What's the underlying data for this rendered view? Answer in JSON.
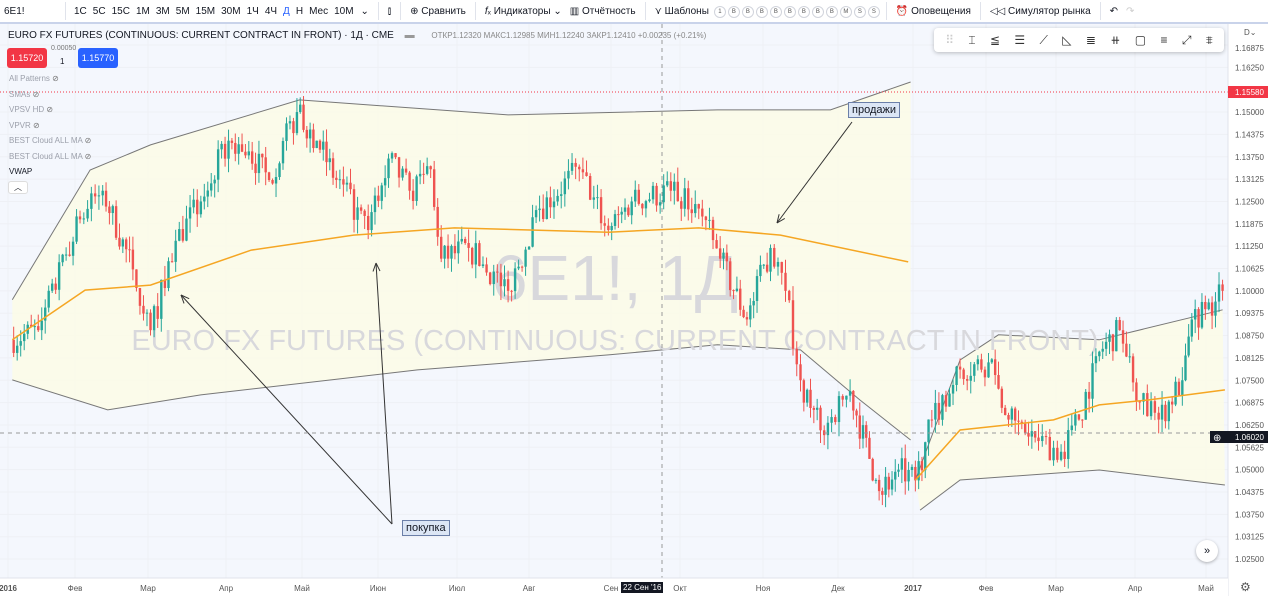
{
  "toolbar": {
    "symbol": "6E1!",
    "intervals": [
      "1С",
      "5С",
      "15С",
      "1М",
      "3М",
      "5М",
      "15М",
      "30М",
      "1Ч",
      "4Ч",
      "Д",
      "Н",
      "Мес",
      "10М"
    ],
    "active_interval": "Д",
    "compare": "Сравнить",
    "indicators": "Индикаторы",
    "reports": "Отчётность",
    "templates": "Шаблоны",
    "circles": [
      "1",
      "B",
      "B",
      "B",
      "B",
      "B",
      "B",
      "B",
      "B",
      "M",
      "S",
      "S"
    ],
    "alerts": "Оповещения",
    "replay": "Симулятор рынка"
  },
  "legend": {
    "title": "EURO FX FUTURES (CONTINUOUS: CURRENT CONTRACT IN FRONT) · 1Д · CME",
    "ohlc": "ОТКР1.12320 МАКС1.12985 МИН1.12240 ЗАКР1.12410 +0.00235 (+0.21%)",
    "sell_price": "1.15720",
    "spread": "0.00050",
    "qty": "1",
    "buy_price": "1.15770"
  },
  "indicators": [
    "All Patterns",
    "SMAs",
    "VPSV HD",
    "VPVR",
    "BEST Cloud ALL MA",
    "BEST Cloud ALL MA",
    "VWAP"
  ],
  "watermark": {
    "symbol": "6E1!, 1Д",
    "name": "EURO FX FUTURES (CONTINUOUS: CURRENT CONTRACT IN FRONT)"
  },
  "annotations": {
    "buy": "покупка",
    "sell": "продажи"
  },
  "price_axis": {
    "top_partial": "D",
    "ticks": [
      "1.16875",
      "1.16250",
      "1.15000",
      "1.14375",
      "1.13750",
      "1.13125",
      "1.12500",
      "1.11875",
      "1.11250",
      "1.10625",
      "1.10000",
      "1.09375",
      "1.08750",
      "1.08125",
      "1.07500",
      "1.06875",
      "1.06250",
      "1.05625",
      "1.05000",
      "1.04375",
      "1.03750",
      "1.03125",
      "1.02500"
    ],
    "last_price": "1.15580",
    "crosshair_price": "1.06020"
  },
  "time_axis": {
    "ticks": [
      [
        "2016-01-01",
        "2016"
      ],
      [
        "2016-02-01",
        "Фев"
      ],
      [
        "2016-03-01",
        "Мар"
      ],
      [
        "2016-04-01",
        "Апр"
      ],
      [
        "2016-05-01",
        "Май"
      ],
      [
        "2016-06-01",
        "Июн"
      ],
      [
        "2016-07-01",
        "Июл"
      ],
      [
        "2016-08-01",
        "Авг"
      ],
      [
        "2016-09-01",
        "Сен"
      ],
      [
        "2016-10-01",
        "Окт"
      ],
      [
        "2016-11-01",
        "Ноя"
      ],
      [
        "2016-12-01",
        "Дек"
      ],
      [
        "2017-01-01",
        "2017"
      ],
      [
        "2017-02-01",
        "Фев"
      ],
      [
        "2017-03-01",
        "Мар"
      ],
      [
        "2017-04-01",
        "Апр"
      ],
      [
        "2017-05-01",
        "Май"
      ]
    ],
    "crosshair_date": "22 Сен '16"
  },
  "colors": {
    "up": "#26a69a",
    "down": "#ef5350",
    "vwap": "#f5a623",
    "channel": "#777777",
    "fill": "#fbfbe6",
    "accent": "#2962ff"
  },
  "chart_data": {
    "type": "candlestick",
    "ylim": [
      1.02,
      1.17
    ],
    "close": [
      [
        "2016-01-02",
        1.0863
      ],
      [
        "2016-01-15",
        1.089
      ],
      [
        "2016-02-03",
        1.12
      ],
      [
        "2016-02-12",
        1.128
      ],
      [
        "2016-02-24",
        1.106
      ],
      [
        "2016-03-02",
        1.089
      ],
      [
        "2016-03-12",
        1.114
      ],
      [
        "2016-03-22",
        1.125
      ],
      [
        "2016-04-02",
        1.142
      ],
      [
        "2016-04-10",
        1.139
      ],
      [
        "2016-04-18",
        1.131
      ],
      [
        "2016-04-29",
        1.15
      ],
      [
        "2016-05-07",
        1.142
      ],
      [
        "2016-05-15",
        1.131
      ],
      [
        "2016-05-28",
        1.117
      ],
      [
        "2016-06-05",
        1.137
      ],
      [
        "2016-06-13",
        1.128
      ],
      [
        "2016-06-21",
        1.134
      ],
      [
        "2016-06-25",
        1.109
      ],
      [
        "2016-07-06",
        1.112
      ],
      [
        "2016-07-23",
        1.1
      ],
      [
        "2016-08-05",
        1.123
      ],
      [
        "2016-08-20",
        1.134
      ],
      [
        "2016-08-31",
        1.117
      ],
      [
        "2016-09-10",
        1.125
      ],
      [
        "2016-09-27",
        1.128
      ],
      [
        "2016-10-08",
        1.123
      ],
      [
        "2016-10-16",
        1.109
      ],
      [
        "2016-10-26",
        1.092
      ],
      [
        "2016-11-04",
        1.112
      ],
      [
        "2016-11-10",
        1.1
      ],
      [
        "2016-11-16",
        1.075
      ],
      [
        "2016-11-24",
        1.061
      ],
      [
        "2016-12-06",
        1.072
      ],
      [
        "2016-12-14",
        1.053
      ],
      [
        "2016-12-18",
        1.044
      ],
      [
        "2016-12-26",
        1.05
      ],
      [
        "2017-01-02",
        1.047
      ],
      [
        "2017-01-09",
        1.064
      ],
      [
        "2017-01-21",
        1.078
      ],
      [
        "2017-02-02",
        1.08
      ],
      [
        "2017-02-10",
        1.064
      ],
      [
        "2017-02-22",
        1.058
      ],
      [
        "2017-03-03",
        1.055
      ],
      [
        "2017-03-10",
        1.064
      ],
      [
        "2017-03-18",
        1.083
      ],
      [
        "2017-03-26",
        1.089
      ],
      [
        "2017-04-03",
        1.069
      ],
      [
        "2017-04-11",
        1.064
      ],
      [
        "2017-04-21",
        1.075
      ],
      [
        "2017-04-25",
        1.092
      ],
      [
        "2017-05-05",
        1.097
      ],
      [
        "2017-05-08",
        1.1
      ]
    ],
    "channel_1_upper": [
      [
        "2016-01-03",
        1.0975
      ],
      [
        "2016-02-07",
        1.1338
      ],
      [
        "2016-03-02",
        1.1408
      ],
      [
        "2016-04-30",
        1.1534
      ],
      [
        "2016-07-23",
        1.1492
      ],
      [
        "2016-10-15",
        1.1506
      ],
      [
        "2016-11-28",
        1.1506
      ],
      [
        "2016-12-31",
        1.1584
      ]
    ],
    "channel_1_lower": [
      [
        "2016-01-03",
        1.0751
      ],
      [
        "2016-02-14",
        1.0667
      ],
      [
        "2016-03-22",
        1.0709
      ],
      [
        "2016-06-16",
        1.0779
      ],
      [
        "2016-08-31",
        1.0821
      ],
      [
        "2016-10-15",
        1.0849
      ],
      [
        "2016-11-16",
        1.0835
      ],
      [
        "2016-12-10",
        1.0695
      ],
      [
        "2016-12-31",
        1.0583
      ]
    ],
    "channel_2_upper": [
      [
        "2017-01-02",
        1.0471
      ],
      [
        "2017-01-21",
        1.0807
      ],
      [
        "2017-02-06",
        1.0877
      ],
      [
        "2017-03-18",
        1.0863
      ],
      [
        "2017-05-08",
        1.0947
      ]
    ],
    "channel_2_lower": [
      [
        "2017-01-04",
        1.0387
      ],
      [
        "2017-01-21",
        1.0471
      ],
      [
        "2017-03-18",
        1.0499
      ],
      [
        "2017-05-09",
        1.0457
      ]
    ],
    "vwap_1": [
      [
        "2016-01-03",
        1.0863
      ],
      [
        "2016-02-05",
        1.1002
      ],
      [
        "2016-03-02",
        1.1016
      ],
      [
        "2016-04-11",
        1.1114
      ],
      [
        "2016-05-22",
        1.1156
      ],
      [
        "2016-06-30",
        1.1176
      ],
      [
        "2016-08-31",
        1.1164
      ],
      [
        "2016-10-08",
        1.1176
      ],
      [
        "2016-11-08",
        1.1156
      ],
      [
        "2016-12-30",
        1.1081
      ]
    ],
    "vwap_2": [
      [
        "2017-01-02",
        1.0471
      ],
      [
        "2017-01-21",
        1.0611
      ],
      [
        "2017-02-28",
        1.0639
      ],
      [
        "2017-03-18",
        1.0681
      ],
      [
        "2017-04-07",
        1.0695
      ],
      [
        "2017-05-09",
        1.0723
      ]
    ]
  }
}
